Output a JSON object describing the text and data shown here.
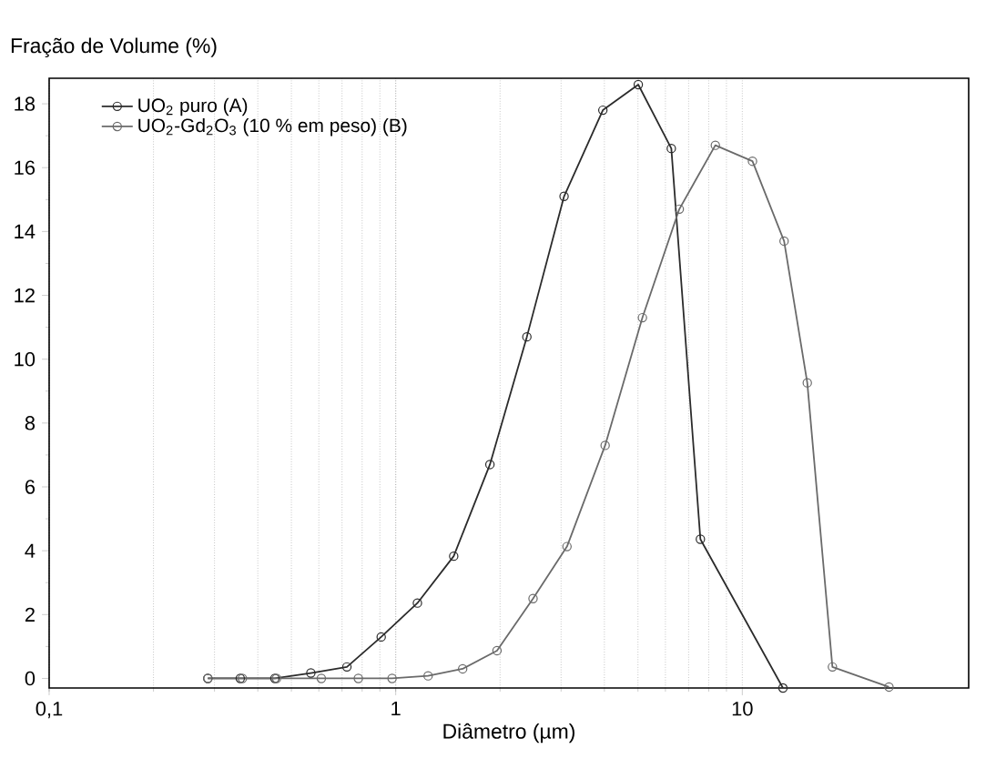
{
  "chart_data": {
    "type": "line",
    "xlabel": "Diâmetro (µm)",
    "ylabel": "Fração de Volume (%)",
    "log": "x",
    "grid": "x",
    "legend": "top left",
    "marker": "circle",
    "xlim": [
      0.1,
      45
    ],
    "xticks": [
      {
        "value": 0.1,
        "label": "0,1"
      },
      1,
      10
    ],
    "ylim": [
      -0.3,
      18.8
    ],
    "yticks": [
      0,
      2,
      4,
      6,
      8,
      10,
      12,
      14,
      16,
      18
    ],
    "series": [
      {
        "name": "UO$_{2}$ puro (A)",
        "color": "#2b2b2b",
        "x": [
          0.287,
          0.356,
          0.448,
          0.569,
          0.723,
          0.908,
          1.155,
          1.47,
          1.87,
          2.39,
          3.06,
          3.96,
          5.01,
          6.24,
          7.57,
          13.1
        ],
        "values": [
          0,
          0,
          0,
          0.17,
          0.36,
          1.3,
          2.36,
          3.83,
          6.7,
          10.7,
          15.1,
          17.8,
          18.6,
          16.6,
          4.36,
          -0.3
        ]
      },
      {
        "name": "UO$_{2}$-Gd$_{2}$O$_{3}$ (10 % em peso) (B)",
        "color": "#6a6a6a",
        "x": [
          0.287,
          0.361,
          0.453,
          0.61,
          0.78,
          0.976,
          1.24,
          1.56,
          1.96,
          2.49,
          3.12,
          4.02,
          5.15,
          6.58,
          8.36,
          10.7,
          13.2,
          15.4,
          18.2,
          26.5
        ],
        "values": [
          0,
          0,
          0,
          0,
          0,
          0,
          0.08,
          0.3,
          0.87,
          2.5,
          4.13,
          7.3,
          11.3,
          14.7,
          16.7,
          16.2,
          13.7,
          9.26,
          0.36,
          -0.27
        ]
      }
    ]
  }
}
